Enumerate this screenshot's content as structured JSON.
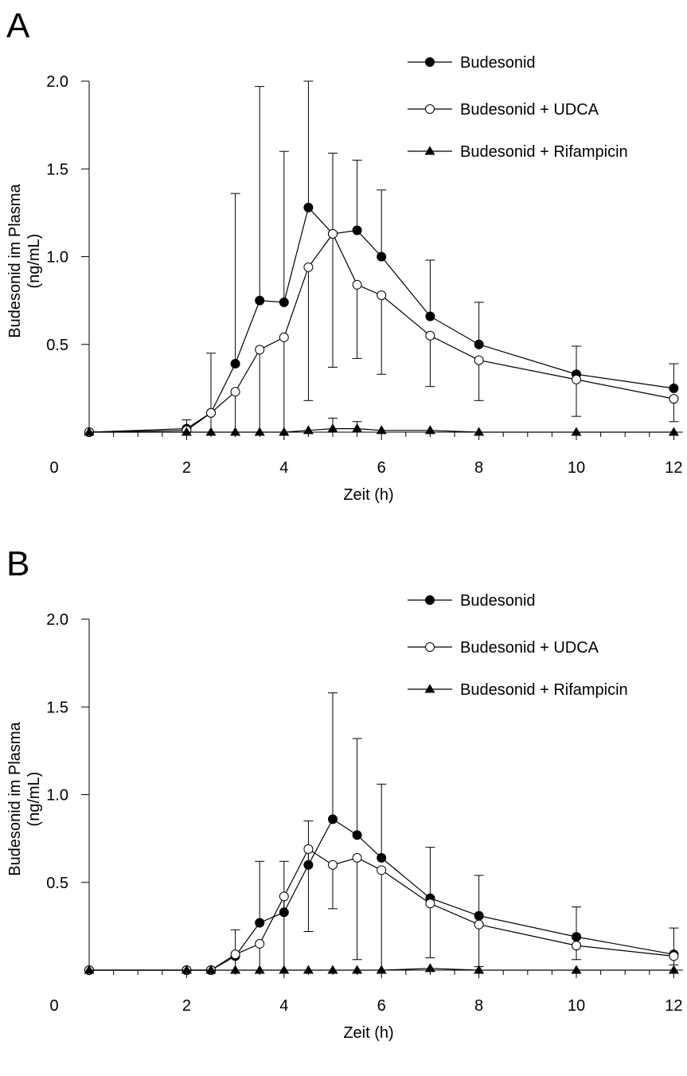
{
  "chart_data": [
    {
      "panel": "A",
      "type": "line",
      "xlabel": "Zeit (h)",
      "ylabel": "Budesonid im Plasma",
      "ylabel_unit": "(ng/mL)",
      "xlim": [
        0,
        12.2
      ],
      "ylim": [
        0,
        2.0
      ],
      "xticks": [
        0,
        2,
        4,
        6,
        8,
        10,
        12
      ],
      "yticks": [
        0.5,
        1.0,
        1.5,
        2.0
      ],
      "xtick_labels": [
        "0",
        "2",
        "4",
        "6",
        "8",
        "10",
        "12"
      ],
      "ytick_labels": [
        "0.5",
        "1.0",
        "1.5",
        "2.0"
      ],
      "x_minor_step": 0.5,
      "grid": false,
      "legend_position": "top-right",
      "series": [
        {
          "name": "Budesonid",
          "marker": "filled-circle",
          "x": [
            0,
            2,
            2.5,
            3,
            3.5,
            4,
            4.5,
            5,
            5.5,
            6,
            7,
            8,
            10,
            12
          ],
          "y": [
            0,
            0.02,
            0.11,
            0.39,
            0.75,
            0.74,
            1.28,
            1.13,
            1.15,
            1.0,
            0.66,
            0.5,
            0.33,
            0.25
          ],
          "err_upper": [
            0,
            0.07,
            0.45,
            1.36,
            1.97,
            1.6,
            2.0,
            1.59,
            1.55,
            1.38,
            0.98,
            0.74,
            0.49,
            0.39
          ]
        },
        {
          "name": "Budesonid + UDCA",
          "marker": "open-circle",
          "x": [
            0,
            2,
            2.5,
            3,
            3.5,
            4,
            4.5,
            5,
            5.5,
            6,
            7,
            8,
            10,
            12
          ],
          "y": [
            0,
            0.01,
            0.11,
            0.23,
            0.47,
            0.54,
            0.94,
            1.13,
            0.84,
            0.78,
            0.55,
            0.41,
            0.3,
            0.19
          ],
          "err_lower": [
            0,
            0,
            0,
            0,
            0,
            0,
            0.18,
            0.37,
            0.42,
            0.33,
            0.26,
            0.18,
            0.09,
            0.06
          ]
        },
        {
          "name": "Budesonid + Rifampicin",
          "marker": "filled-triangle",
          "x": [
            0,
            2,
            2.5,
            3,
            3.5,
            4,
            4.5,
            5,
            5.5,
            6,
            7,
            8,
            10,
            12
          ],
          "y": [
            0,
            0,
            0,
            0,
            0,
            0,
            0.01,
            0.02,
            0.02,
            0.01,
            0.01,
            0,
            0,
            0
          ],
          "err_upper": [
            0,
            0,
            0,
            0,
            0,
            0,
            0,
            0.08,
            0.06,
            0,
            0,
            0,
            0,
            0
          ]
        }
      ]
    },
    {
      "panel": "B",
      "type": "line",
      "xlabel": "Zeit (h)",
      "ylabel": "Budesonid im Plasma",
      "ylabel_unit": "(ng/mL)",
      "xlim": [
        0,
        12.2
      ],
      "ylim": [
        0,
        2.0
      ],
      "xticks": [
        0,
        2,
        4,
        6,
        8,
        10,
        12
      ],
      "yticks": [
        0.5,
        1.0,
        1.5,
        2.0
      ],
      "xtick_labels": [
        "0",
        "2",
        "4",
        "6",
        "8",
        "10",
        "12"
      ],
      "ytick_labels": [
        "0.5",
        "1.0",
        "1.5",
        "2.0"
      ],
      "x_minor_step": 0.5,
      "grid": false,
      "legend_position": "top-right",
      "series": [
        {
          "name": "Budesonid",
          "marker": "filled-circle",
          "x": [
            0,
            2,
            2.5,
            3,
            3.5,
            4,
            4.5,
            5,
            5.5,
            6,
            7,
            8,
            10,
            12
          ],
          "y": [
            0,
            0,
            0,
            0.08,
            0.27,
            0.33,
            0.6,
            0.86,
            0.77,
            0.64,
            0.41,
            0.31,
            0.19,
            0.09
          ],
          "err_upper": [
            0,
            0,
            0,
            0.23,
            0.62,
            0.62,
            0.85,
            1.58,
            1.32,
            1.06,
            0.7,
            0.54,
            0.36,
            0.24
          ]
        },
        {
          "name": "Budesonid + UDCA",
          "marker": "open-circle",
          "x": [
            0,
            2,
            2.5,
            3,
            3.5,
            4,
            4.5,
            5,
            5.5,
            6,
            7,
            8,
            10,
            12
          ],
          "y": [
            0,
            0,
            0,
            0.09,
            0.15,
            0.42,
            0.69,
            0.6,
            0.64,
            0.57,
            0.38,
            0.26,
            0.14,
            0.08
          ],
          "err_lower": [
            0,
            0,
            0,
            0,
            0,
            0,
            0.22,
            0.35,
            0.06,
            0,
            0.07,
            0.02,
            0.06,
            0.03
          ]
        },
        {
          "name": "Budesonid + Rifampicin",
          "marker": "filled-triangle",
          "x": [
            0,
            2,
            2.5,
            3,
            3.5,
            4,
            4.5,
            5,
            5.5,
            6,
            7,
            8,
            10,
            12
          ],
          "y": [
            0,
            0,
            0,
            0,
            0,
            0,
            0,
            0,
            0,
            0,
            0.01,
            0,
            0,
            0
          ]
        }
      ]
    }
  ]
}
